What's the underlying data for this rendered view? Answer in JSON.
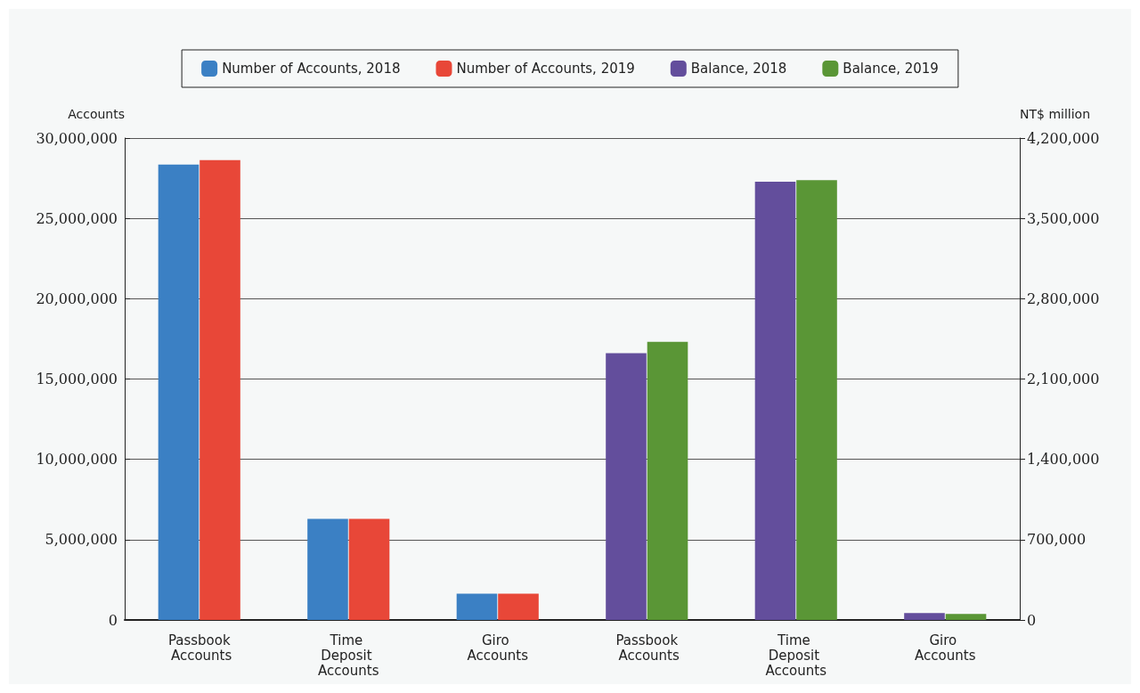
{
  "chart_data": {
    "type": "bar",
    "categories": [
      "Passbook Accounts",
      "Time Deposit Accounts",
      "Giro Accounts",
      "Passbook Accounts",
      "Time Deposit Accounts",
      "Giro Accounts"
    ],
    "series": [
      {
        "name": "Number of Accounts, 2018",
        "color": "#3b80c4",
        "values": [
          28350000,
          6300000,
          1630000,
          null,
          null,
          null
        ]
      },
      {
        "name": "Number of Accounts, 2019",
        "color": "#e84738",
        "values": [
          28630000,
          6300000,
          1630000,
          null,
          null,
          null
        ]
      },
      {
        "name": "Balance, 2018",
        "color": "#634e9c",
        "axis": "y2",
        "values": [
          null,
          null,
          null,
          2325000,
          3819000,
          61000
        ]
      },
      {
        "name": "Balance, 2019",
        "color": "#5a9636",
        "axis": "y2",
        "values": [
          null,
          null,
          null,
          2424000,
          3834000,
          53000
        ]
      }
    ],
    "ylabel": "Accounts",
    "y2label": "NT$ million",
    "ylim": [
      0,
      30000000
    ],
    "yticks": [
      0,
      {
        "value": 5000000,
        "label": "5,000,000"
      },
      {
        "value": 10000000,
        "label": "10,000,000"
      },
      {
        "value": 15000000,
        "label": "15,000,000"
      },
      {
        "value": 20000000,
        "label": "20,000,000"
      },
      {
        "value": 25000000,
        "label": "25,000,000"
      },
      {
        "value": 30000000,
        "label": "30,000,000"
      }
    ],
    "y2lim": [
      0,
      4200000
    ],
    "y2ticks": [
      0,
      {
        "value": 700000,
        "label": "700,000"
      },
      {
        "value": 1400000,
        "label": "1,400,000"
      },
      {
        "value": 2100000,
        "label": "2,100,000"
      },
      {
        "value": 2800000,
        "label": "2,800,000"
      },
      {
        "value": 3500000,
        "label": "3,500,000"
      },
      {
        "value": 4200000,
        "label": "4,200,000"
      }
    ],
    "grid": "y",
    "legend": "top"
  }
}
